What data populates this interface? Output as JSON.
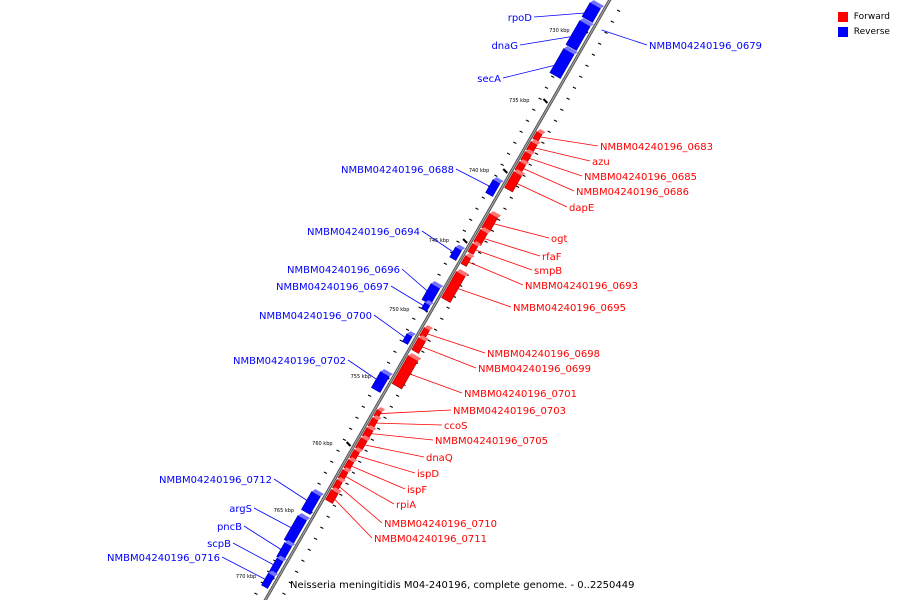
{
  "legend": [
    {
      "label": "Forward",
      "color": "#ff0000"
    },
    {
      "label": "Reverse",
      "color": "#0000ff"
    }
  ],
  "caption": "Neisseria meningitidis M04-240196, complete genome. - 0..2250449",
  "ticks": [
    "730 kbp",
    "735 kbp",
    "740 kbp",
    "745 kbp",
    "750 kbp",
    "755 kbp",
    "760 kbp",
    "765 kbp",
    "770 kbp"
  ],
  "colors": {
    "forward": "#ff0000",
    "reverse": "#0000ff",
    "axis": "#7f7f7f"
  },
  "genes_reverse": [
    {
      "name": "rpoD"
    },
    {
      "name": "NMBM04240196_0679"
    },
    {
      "name": "dnaG"
    },
    {
      "name": "secA"
    },
    {
      "name": "NMBM04240196_0688"
    },
    {
      "name": "NMBM04240196_0694"
    },
    {
      "name": "NMBM04240196_0696"
    },
    {
      "name": "NMBM04240196_0697"
    },
    {
      "name": "NMBM04240196_0700"
    },
    {
      "name": "NMBM04240196_0702"
    },
    {
      "name": "NMBM04240196_0712"
    },
    {
      "name": "argS"
    },
    {
      "name": "pncB"
    },
    {
      "name": "scpB"
    },
    {
      "name": "NMBM04240196_0716"
    }
  ],
  "genes_forward": [
    {
      "name": "NMBM04240196_0683"
    },
    {
      "name": "azu"
    },
    {
      "name": "NMBM04240196_0685"
    },
    {
      "name": "NMBM04240196_0686"
    },
    {
      "name": "dapE"
    },
    {
      "name": "ogt"
    },
    {
      "name": "rfaF"
    },
    {
      "name": "smpB"
    },
    {
      "name": "NMBM04240196_0693"
    },
    {
      "name": "NMBM04240196_0695"
    },
    {
      "name": "NMBM04240196_0698"
    },
    {
      "name": "NMBM04240196_0699"
    },
    {
      "name": "NMBM04240196_0701"
    },
    {
      "name": "NMBM04240196_0703"
    },
    {
      "name": "ccoS"
    },
    {
      "name": "NMBM04240196_0705"
    },
    {
      "name": "dnaQ"
    },
    {
      "name": "ispD"
    },
    {
      "name": "ispF"
    },
    {
      "name": "rpiA"
    },
    {
      "name": "NMBM04240196_0710"
    },
    {
      "name": "NMBM04240196_0711"
    }
  ]
}
